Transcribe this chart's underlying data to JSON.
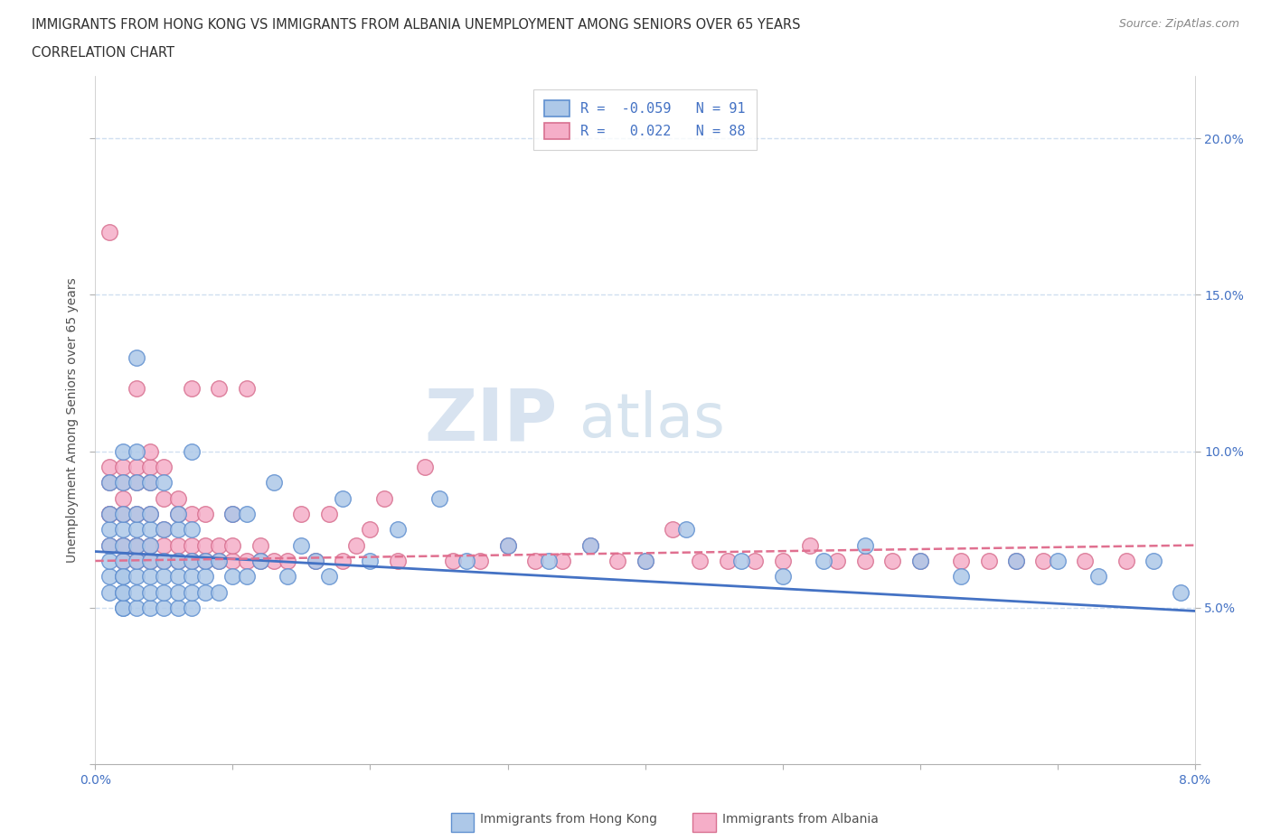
{
  "title_line1": "IMMIGRANTS FROM HONG KONG VS IMMIGRANTS FROM ALBANIA UNEMPLOYMENT AMONG SENIORS OVER 65 YEARS",
  "title_line2": "CORRELATION CHART",
  "source": "Source: ZipAtlas.com",
  "ylabel": "Unemployment Among Seniors over 65 years",
  "xlim": [
    0.0,
    0.08
  ],
  "ylim": [
    0.0,
    0.22
  ],
  "xticks": [
    0.0,
    0.01,
    0.02,
    0.03,
    0.04,
    0.05,
    0.06,
    0.07,
    0.08
  ],
  "yticks": [
    0.0,
    0.05,
    0.1,
    0.15,
    0.2
  ],
  "hk_R": -0.059,
  "hk_N": 91,
  "alb_R": 0.022,
  "alb_N": 88,
  "hk_color": "#adc8e8",
  "alb_color": "#f5aec8",
  "hk_edge_color": "#6090d0",
  "alb_edge_color": "#d87090",
  "hk_line_color": "#4472c4",
  "alb_line_color": "#e07090",
  "hk_label": "Immigrants from Hong Kong",
  "alb_label": "Immigrants from Albania",
  "title_color": "#303030",
  "axis_color": "#4472c4",
  "watermark_zip": "ZIP",
  "watermark_atlas": "atlas",
  "grid_color": "#d0dff0",
  "hk_line_y0": 0.068,
  "hk_line_y1": 0.049,
  "alb_line_y0": 0.065,
  "alb_line_y1": 0.07,
  "hk_scatter_x": [
    0.001,
    0.001,
    0.001,
    0.001,
    0.001,
    0.001,
    0.001,
    0.002,
    0.002,
    0.002,
    0.002,
    0.002,
    0.002,
    0.002,
    0.002,
    0.002,
    0.002,
    0.002,
    0.002,
    0.003,
    0.003,
    0.003,
    0.003,
    0.003,
    0.003,
    0.003,
    0.003,
    0.003,
    0.003,
    0.004,
    0.004,
    0.004,
    0.004,
    0.004,
    0.004,
    0.004,
    0.004,
    0.005,
    0.005,
    0.005,
    0.005,
    0.005,
    0.005,
    0.006,
    0.006,
    0.006,
    0.006,
    0.006,
    0.006,
    0.007,
    0.007,
    0.007,
    0.007,
    0.007,
    0.007,
    0.008,
    0.008,
    0.008,
    0.009,
    0.009,
    0.01,
    0.01,
    0.011,
    0.011,
    0.012,
    0.013,
    0.014,
    0.015,
    0.016,
    0.017,
    0.018,
    0.02,
    0.022,
    0.025,
    0.027,
    0.03,
    0.033,
    0.036,
    0.04,
    0.043,
    0.047,
    0.05,
    0.053,
    0.056,
    0.06,
    0.063,
    0.067,
    0.07,
    0.073,
    0.077,
    0.079
  ],
  "hk_scatter_y": [
    0.055,
    0.06,
    0.065,
    0.07,
    0.075,
    0.08,
    0.09,
    0.05,
    0.055,
    0.06,
    0.065,
    0.07,
    0.075,
    0.08,
    0.09,
    0.1,
    0.05,
    0.055,
    0.06,
    0.05,
    0.055,
    0.06,
    0.065,
    0.07,
    0.075,
    0.08,
    0.09,
    0.1,
    0.13,
    0.05,
    0.055,
    0.06,
    0.065,
    0.07,
    0.075,
    0.08,
    0.09,
    0.05,
    0.055,
    0.06,
    0.065,
    0.075,
    0.09,
    0.05,
    0.055,
    0.06,
    0.065,
    0.075,
    0.08,
    0.05,
    0.055,
    0.06,
    0.065,
    0.075,
    0.1,
    0.055,
    0.06,
    0.065,
    0.055,
    0.065,
    0.06,
    0.08,
    0.06,
    0.08,
    0.065,
    0.09,
    0.06,
    0.07,
    0.065,
    0.06,
    0.085,
    0.065,
    0.075,
    0.085,
    0.065,
    0.07,
    0.065,
    0.07,
    0.065,
    0.075,
    0.065,
    0.06,
    0.065,
    0.07,
    0.065,
    0.06,
    0.065,
    0.065,
    0.06,
    0.065,
    0.055
  ],
  "alb_scatter_x": [
    0.001,
    0.001,
    0.001,
    0.001,
    0.001,
    0.001,
    0.002,
    0.002,
    0.002,
    0.002,
    0.002,
    0.002,
    0.002,
    0.002,
    0.003,
    0.003,
    0.003,
    0.003,
    0.003,
    0.003,
    0.003,
    0.004,
    0.004,
    0.004,
    0.004,
    0.004,
    0.004,
    0.005,
    0.005,
    0.005,
    0.005,
    0.005,
    0.006,
    0.006,
    0.006,
    0.006,
    0.007,
    0.007,
    0.007,
    0.007,
    0.008,
    0.008,
    0.008,
    0.009,
    0.009,
    0.009,
    0.01,
    0.01,
    0.01,
    0.011,
    0.011,
    0.012,
    0.012,
    0.013,
    0.014,
    0.015,
    0.016,
    0.017,
    0.018,
    0.019,
    0.02,
    0.021,
    0.022,
    0.024,
    0.026,
    0.028,
    0.03,
    0.032,
    0.034,
    0.036,
    0.038,
    0.04,
    0.042,
    0.044,
    0.046,
    0.048,
    0.05,
    0.052,
    0.054,
    0.056,
    0.058,
    0.06,
    0.063,
    0.065,
    0.067,
    0.069,
    0.072,
    0.075
  ],
  "alb_scatter_y": [
    0.17,
    0.08,
    0.09,
    0.095,
    0.07,
    0.08,
    0.065,
    0.07,
    0.08,
    0.09,
    0.095,
    0.07,
    0.08,
    0.085,
    0.065,
    0.07,
    0.08,
    0.09,
    0.095,
    0.07,
    0.12,
    0.065,
    0.07,
    0.08,
    0.09,
    0.095,
    0.1,
    0.065,
    0.07,
    0.075,
    0.085,
    0.095,
    0.065,
    0.07,
    0.08,
    0.085,
    0.065,
    0.07,
    0.08,
    0.12,
    0.065,
    0.07,
    0.08,
    0.065,
    0.07,
    0.12,
    0.065,
    0.07,
    0.08,
    0.065,
    0.12,
    0.065,
    0.07,
    0.065,
    0.065,
    0.08,
    0.065,
    0.08,
    0.065,
    0.07,
    0.075,
    0.085,
    0.065,
    0.095,
    0.065,
    0.065,
    0.07,
    0.065,
    0.065,
    0.07,
    0.065,
    0.065,
    0.075,
    0.065,
    0.065,
    0.065,
    0.065,
    0.07,
    0.065,
    0.065,
    0.065,
    0.065,
    0.065,
    0.065,
    0.065,
    0.065,
    0.065,
    0.065
  ]
}
